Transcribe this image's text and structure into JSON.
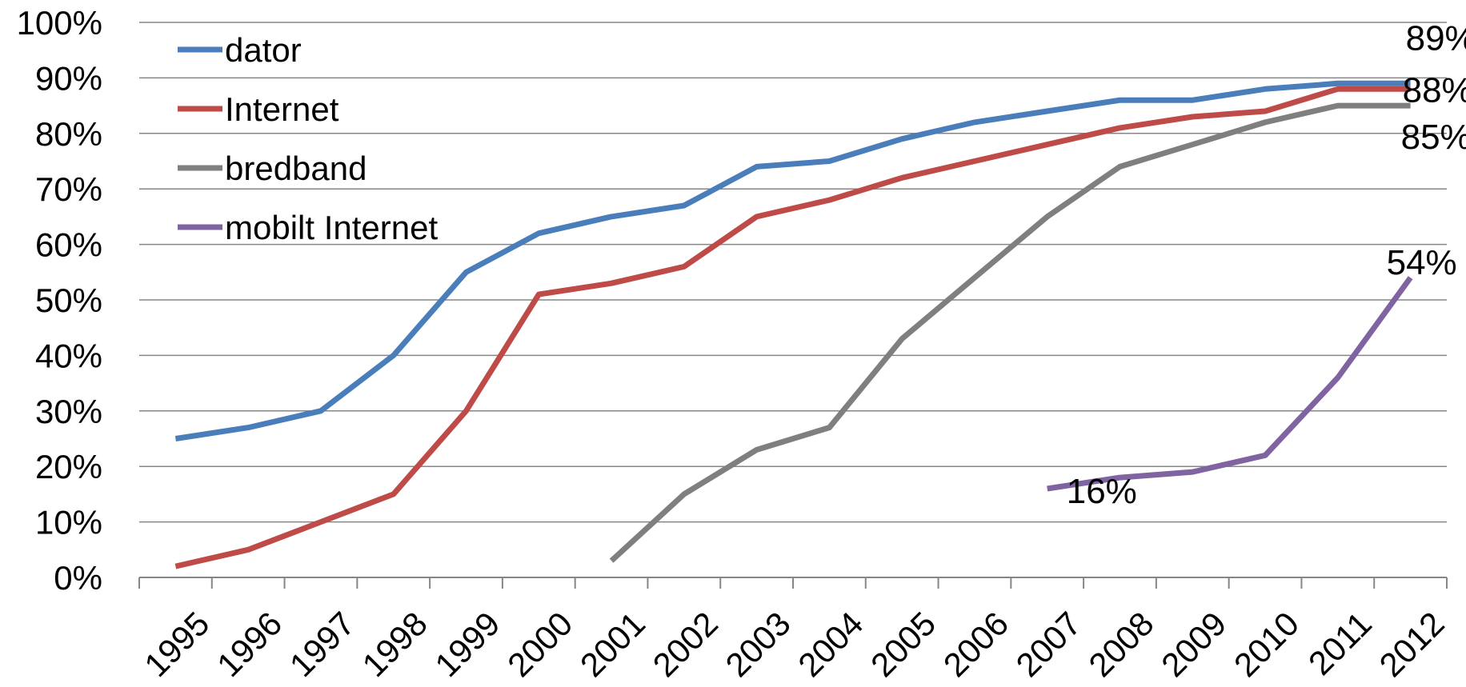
{
  "chart_data": {
    "type": "line",
    "x": [
      "1995",
      "1996",
      "1997",
      "1998",
      "1999",
      "2000",
      "2001",
      "2002",
      "2003",
      "2004",
      "2005",
      "2006",
      "2007",
      "2008",
      "2009",
      "2010",
      "2011",
      "2012"
    ],
    "ylim": [
      0,
      100
    ],
    "y_ticks": [
      "0%",
      "10%",
      "20%",
      "30%",
      "40%",
      "50%",
      "60%",
      "70%",
      "80%",
      "90%",
      "100%"
    ],
    "grid": true,
    "legend_position": "top-left",
    "series": [
      {
        "name": "dator",
        "color": "#4a7ebb",
        "values": [
          25,
          27,
          30,
          40,
          55,
          62,
          65,
          67,
          74,
          75,
          79,
          82,
          84,
          86,
          86,
          88,
          89,
          89
        ]
      },
      {
        "name": "Internet",
        "color": "#be4b48",
        "values": [
          2,
          5,
          10,
          15,
          30,
          51,
          53,
          56,
          65,
          68,
          72,
          75,
          78,
          81,
          83,
          84,
          88,
          88
        ]
      },
      {
        "name": "bredband",
        "color": "#7f7f7f",
        "values": [
          null,
          null,
          null,
          null,
          null,
          null,
          3,
          15,
          23,
          27,
          43,
          54,
          65,
          74,
          78,
          82,
          85,
          85
        ]
      },
      {
        "name": "mobilt Internet",
        "color": "#8064a2",
        "values": [
          null,
          null,
          null,
          null,
          null,
          null,
          null,
          null,
          null,
          null,
          null,
          null,
          16,
          18,
          19,
          22,
          36,
          54
        ]
      }
    ],
    "annotations": [
      {
        "text": "89%",
        "series": 0,
        "x": "2012",
        "value": 89
      },
      {
        "text": "88%",
        "series": 1,
        "x": "2012",
        "value": 88
      },
      {
        "text": "85%",
        "series": 2,
        "x": "2012",
        "value": 85
      },
      {
        "text": "16%",
        "series": 3,
        "x": "2007",
        "value": 16
      },
      {
        "text": "54%",
        "series": 3,
        "x": "2012",
        "value": 54
      }
    ]
  }
}
